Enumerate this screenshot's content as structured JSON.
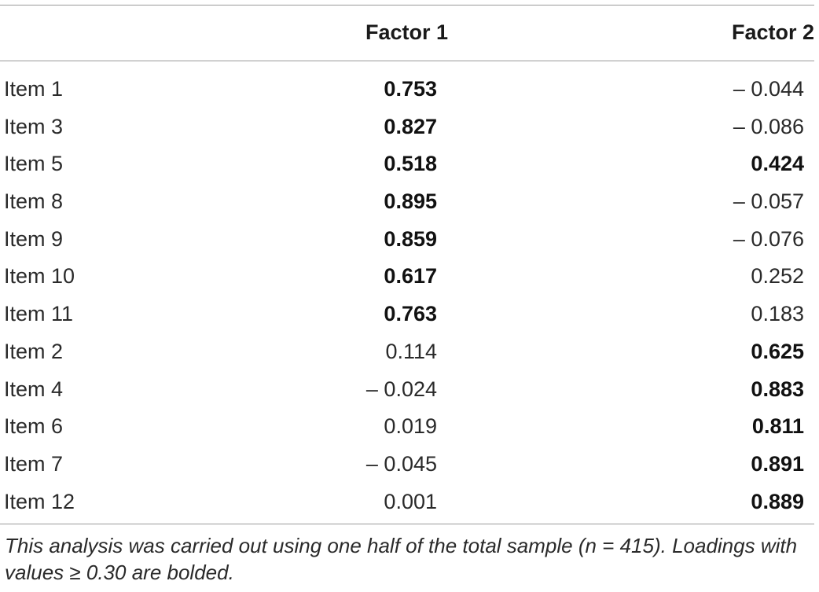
{
  "table": {
    "headers": {
      "item": "",
      "factor1": "Factor 1",
      "factor2": "Factor 2"
    },
    "rows": [
      {
        "item": "Item 1",
        "factor1": "0.753",
        "factor2": "– 0.044",
        "factor1_bold": true,
        "factor2_bold": false
      },
      {
        "item": "Item 3",
        "factor1": "0.827",
        "factor2": "– 0.086",
        "factor1_bold": true,
        "factor2_bold": false
      },
      {
        "item": "Item 5",
        "factor1": "0.518",
        "factor2": "0.424",
        "factor1_bold": true,
        "factor2_bold": true
      },
      {
        "item": "Item 8",
        "factor1": "0.895",
        "factor2": "– 0.057",
        "factor1_bold": true,
        "factor2_bold": false
      },
      {
        "item": "Item 9",
        "factor1": "0.859",
        "factor2": "– 0.076",
        "factor1_bold": true,
        "factor2_bold": false
      },
      {
        "item": "Item 10",
        "factor1": "0.617",
        "factor2": "0.252",
        "factor1_bold": true,
        "factor2_bold": false
      },
      {
        "item": "Item 11",
        "factor1": "0.763",
        "factor2": "0.183",
        "factor1_bold": true,
        "factor2_bold": false
      },
      {
        "item": "Item 2",
        "factor1": "0.114",
        "factor2": "0.625",
        "factor1_bold": false,
        "factor2_bold": true
      },
      {
        "item": "Item 4",
        "factor1": "– 0.024",
        "factor2": "0.883",
        "factor1_bold": false,
        "factor2_bold": true
      },
      {
        "item": "Item 6",
        "factor1": "0.019",
        "factor2": "0.811",
        "factor1_bold": false,
        "factor2_bold": true
      },
      {
        "item": "Item 7",
        "factor1": "– 0.045",
        "factor2": "0.891",
        "factor1_bold": false,
        "factor2_bold": true
      },
      {
        "item": "Item 12",
        "factor1": "0.001",
        "factor2": "0.889",
        "factor1_bold": false,
        "factor2_bold": true
      }
    ],
    "footnote": "This analysis was carried out using one half of the total sample (n = 415). Loadings with values ≥ 0.30 are bolded."
  }
}
